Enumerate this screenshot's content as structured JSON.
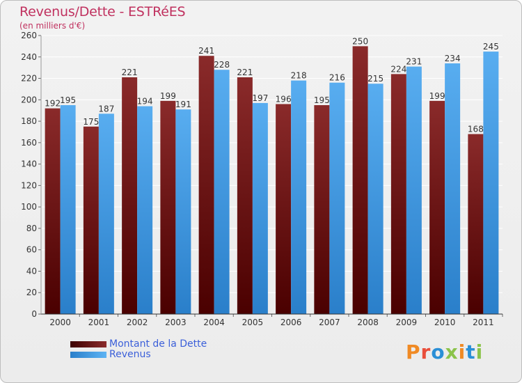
{
  "title": "Revenus/Dette - ESTRéES",
  "subtitle": "(en milliers d'€)",
  "logo": {
    "text": "Proxiti",
    "colors": [
      "#f08a24",
      "#e94e3b",
      "#2a8fd6",
      "#8bc34a",
      "#f08a24",
      "#2a8fd6",
      "#8bc34a"
    ]
  },
  "legend": [
    {
      "label": "Montant de la Dette",
      "color": "#6b0a0a"
    },
    {
      "label": "Revenus",
      "color": "#3d9ee8"
    }
  ],
  "chart_data": {
    "type": "bar",
    "title": "Revenus/Dette - ESTRéES",
    "subtitle": "(en milliers d'€)",
    "categories": [
      "2000",
      "2001",
      "2002",
      "2003",
      "2004",
      "2005",
      "2006",
      "2007",
      "2008",
      "2009",
      "2010",
      "2011"
    ],
    "series": [
      {
        "name": "Montant de la Dette",
        "color": "#7a1414",
        "values": [
          192,
          175,
          221,
          199,
          241,
          221,
          196,
          195,
          250,
          224,
          199,
          168
        ]
      },
      {
        "name": "Revenus",
        "color": "#4ea7ee",
        "values": [
          195,
          187,
          194,
          191,
          228,
          197,
          218,
          216,
          215,
          231,
          234,
          245
        ]
      }
    ],
    "ylim": [
      0,
      260
    ],
    "yticks": [
      0,
      20,
      40,
      60,
      80,
      100,
      120,
      140,
      160,
      180,
      200,
      220,
      240,
      260
    ],
    "grid": true,
    "legend_position": "bottom-left"
  }
}
